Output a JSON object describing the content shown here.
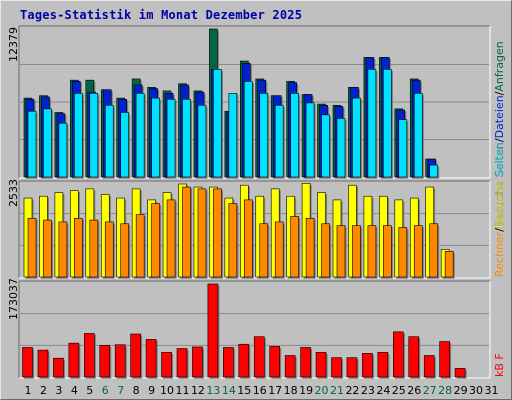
{
  "title": "Tages-Statistik im Monat Dezember 2025",
  "colors": {
    "hits": "#006644",
    "files": "#0022cc",
    "pages": "#00e0ff",
    "visits": "#ffff00",
    "sites": "#ff8800",
    "kbytes": "#ff0000",
    "weekend_label": "#006644",
    "weekday_label": "#000000"
  },
  "legend": {
    "top": {
      "hits": "Anfragen",
      "files": "Dateien",
      "pages": "Seiten",
      "sep": "/"
    },
    "middle": {
      "sites": "Rechner",
      "visits": "Besuche",
      "sep": "/"
    },
    "bottom": {
      "kbytes": "kB F"
    }
  },
  "chart_data": [
    {
      "type": "bar",
      "id": "hits-files-pages",
      "title": "Tages-Statistik im Monat Dezember 2025",
      "ymax_label": "12379",
      "ylim": [
        0,
        12379
      ],
      "categories": [
        "1",
        "2",
        "3",
        "4",
        "5",
        "6",
        "7",
        "8",
        "9",
        "10",
        "11",
        "12",
        "13",
        "14",
        "15",
        "16",
        "17",
        "18",
        "19",
        "20",
        "21",
        "22",
        "23",
        "24",
        "25",
        "26",
        "27",
        "28",
        "29",
        "30",
        "31"
      ],
      "weekend_days": [
        "6",
        "7",
        "13",
        "14",
        "20",
        "21",
        "27",
        "28"
      ],
      "series": [
        {
          "name": "Anfragen",
          "values": [
            6600,
            6800,
            5400,
            8100,
            8100,
            7300,
            6600,
            8200,
            7500,
            7200,
            7800,
            7200,
            12379,
            5500,
            9700,
            8200,
            6800,
            8000,
            6900,
            6100,
            6000,
            7500,
            10000,
            10000,
            5700,
            8200,
            1500,
            null,
            null,
            null,
            null
          ]
        },
        {
          "name": "Dateien",
          "values": [
            6500,
            6700,
            5300,
            8000,
            7100,
            7300,
            6500,
            7700,
            7400,
            7000,
            7700,
            7100,
            9000,
            5400,
            9500,
            8100,
            6800,
            7900,
            6900,
            6000,
            5900,
            7500,
            10000,
            10000,
            5600,
            8100,
            1500,
            null,
            null,
            null,
            null
          ]
        },
        {
          "name": "Seiten",
          "values": [
            5500,
            5700,
            4500,
            7000,
            7000,
            6000,
            5400,
            7000,
            6600,
            6500,
            6500,
            6000,
            9000,
            7000,
            8000,
            7000,
            6000,
            7000,
            6200,
            5200,
            4900,
            6600,
            9000,
            9000,
            4800,
            7000,
            1000,
            null,
            null,
            null,
            null
          ]
        }
      ]
    },
    {
      "type": "bar",
      "id": "visits-sites",
      "ymax_label": "2533",
      "ylim": [
        0,
        2533
      ],
      "categories": [
        "1",
        "2",
        "3",
        "4",
        "5",
        "6",
        "7",
        "8",
        "9",
        "10",
        "11",
        "12",
        "13",
        "14",
        "15",
        "16",
        "17",
        "18",
        "19",
        "20",
        "21",
        "22",
        "23",
        "24",
        "25",
        "26",
        "27",
        "28",
        "29",
        "30",
        "31"
      ],
      "series": [
        {
          "name": "Besuche",
          "values": [
            2150,
            2200,
            2300,
            2350,
            2400,
            2250,
            2150,
            2400,
            2100,
            2300,
            2533,
            2450,
            2450,
            2150,
            2500,
            2200,
            2400,
            2200,
            2550,
            2300,
            2100,
            2500,
            2200,
            2200,
            2100,
            2150,
            2450,
            750,
            null,
            null,
            null
          ]
        },
        {
          "name": "Rechner",
          "values": [
            1600,
            1550,
            1500,
            1600,
            1550,
            1500,
            1450,
            1700,
            2000,
            2100,
            2450,
            2400,
            2400,
            2000,
            2100,
            1450,
            1500,
            1650,
            1600,
            1450,
            1400,
            1400,
            1400,
            1400,
            1350,
            1400,
            1450,
            700,
            null,
            null,
            null
          ]
        }
      ]
    },
    {
      "type": "bar",
      "id": "kbytes",
      "ymax_label": "173037",
      "ylim": [
        0,
        173037
      ],
      "categories": [
        "1",
        "2",
        "3",
        "4",
        "5",
        "6",
        "7",
        "8",
        "9",
        "10",
        "11",
        "12",
        "13",
        "14",
        "15",
        "16",
        "17",
        "18",
        "19",
        "20",
        "21",
        "22",
        "23",
        "24",
        "25",
        "26",
        "27",
        "28",
        "29",
        "30",
        "31"
      ],
      "series": [
        {
          "name": "kB F",
          "values": [
            55000,
            50000,
            35000,
            63000,
            81000,
            59000,
            60000,
            80000,
            70000,
            46000,
            53000,
            56000,
            173037,
            55000,
            61000,
            75000,
            57000,
            40000,
            55000,
            46000,
            36000,
            36000,
            44000,
            46000,
            84000,
            75000,
            40000,
            66000,
            16000,
            null,
            null
          ]
        }
      ]
    }
  ]
}
